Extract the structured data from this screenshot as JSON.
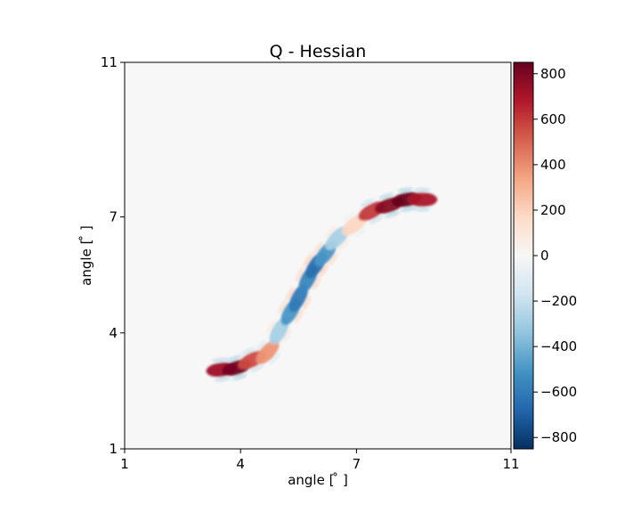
{
  "chart_data": {
    "type": "heatmap",
    "title": "Q - Hessian",
    "xlabel": "angle [$^\\circ$]",
    "ylabel": "angle [$^\\circ$]",
    "xlabel_display": "angle [ ̊ ]",
    "ylabel_display": "angle [ ̊ ]",
    "xlim": [
      1,
      11
    ],
    "ylim": [
      1,
      11
    ],
    "xticks": [
      "1",
      "4",
      "7",
      "11"
    ],
    "yticks": [
      "1",
      "4",
      "7",
      "11"
    ],
    "xtick_values": [
      1,
      4,
      7,
      11
    ],
    "ytick_values": [
      1,
      4,
      7,
      11
    ],
    "background_value": 0,
    "colormap": "RdBu_r",
    "colorbar": {
      "vmin": -850,
      "vmax": 850,
      "ticks": [
        -800,
        -600,
        -400,
        -200,
        0,
        200,
        400,
        600,
        800
      ],
      "tick_labels": [
        "−800",
        "−600",
        "−400",
        "−200",
        "0",
        "200",
        "400",
        "600",
        "800"
      ],
      "colors": [
        "#053061",
        "#2166ac",
        "#4393c3",
        "#92c5de",
        "#d1e5f0",
        "#f7f7f7",
        "#fddbc7",
        "#f4a582",
        "#d6604d",
        "#b2182b",
        "#67001f"
      ]
    },
    "blobs": [
      {
        "x": 3.5,
        "y": 3.05,
        "value": 720
      },
      {
        "x": 3.9,
        "y": 3.1,
        "value": 820
      },
      {
        "x": 4.3,
        "y": 3.3,
        "value": 560
      },
      {
        "x": 4.7,
        "y": 3.5,
        "value": 380
      },
      {
        "x": 5.0,
        "y": 4.05,
        "value": -280
      },
      {
        "x": 5.3,
        "y": 4.55,
        "value": -500
      },
      {
        "x": 5.5,
        "y": 4.9,
        "value": -600
      },
      {
        "x": 5.75,
        "y": 5.4,
        "value": -560
      },
      {
        "x": 5.95,
        "y": 5.75,
        "value": -640
      },
      {
        "x": 6.2,
        "y": 6.05,
        "value": -500
      },
      {
        "x": 6.5,
        "y": 6.45,
        "value": -280
      },
      {
        "x": 6.95,
        "y": 6.8,
        "value": 180
      },
      {
        "x": 7.4,
        "y": 7.15,
        "value": 600
      },
      {
        "x": 7.85,
        "y": 7.3,
        "value": 780
      },
      {
        "x": 8.3,
        "y": 7.45,
        "value": 850
      },
      {
        "x": 8.7,
        "y": 7.45,
        "value": 700
      }
    ]
  }
}
